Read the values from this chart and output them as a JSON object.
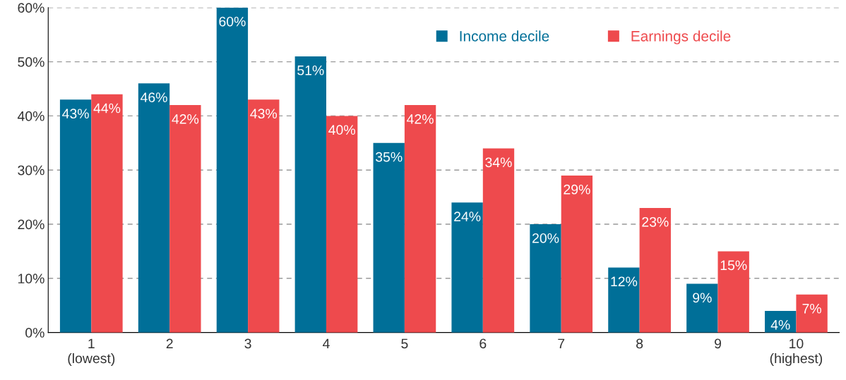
{
  "chart_data": {
    "type": "bar",
    "categories": [
      "1\n(lowest)",
      "2",
      "3",
      "4",
      "5",
      "6",
      "7",
      "8",
      "9",
      "10\n(highest)"
    ],
    "series": [
      {
        "name": "Income decile",
        "color": "#006f98",
        "values": [
          43,
          46,
          60,
          51,
          35,
          24,
          20,
          12,
          9,
          4
        ],
        "value_labels": [
          "43%",
          "46%",
          "60%",
          "51%",
          "35%",
          "24%",
          "20%",
          "12%",
          "9%",
          "4%"
        ]
      },
      {
        "name": "Earnings decile",
        "color": "#ee4a4d",
        "values": [
          44,
          42,
          43,
          40,
          42,
          34,
          29,
          23,
          15,
          7
        ],
        "value_labels": [
          "44%",
          "42%",
          "43%",
          "40%",
          "42%",
          "34%",
          "29%",
          "23%",
          "15%",
          "7%"
        ]
      }
    ],
    "ylim": [
      0,
      60
    ],
    "yticks": [
      {
        "value": 0,
        "label": "0%"
      },
      {
        "value": 10,
        "label": "10%"
      },
      {
        "value": 20,
        "label": "20%"
      },
      {
        "value": 30,
        "label": "30%"
      },
      {
        "value": 40,
        "label": "40%"
      },
      {
        "value": 50,
        "label": "50%"
      },
      {
        "value": 60,
        "label": "60%"
      }
    ],
    "grid": "y",
    "line_style": "dashed",
    "legend": "top right"
  }
}
